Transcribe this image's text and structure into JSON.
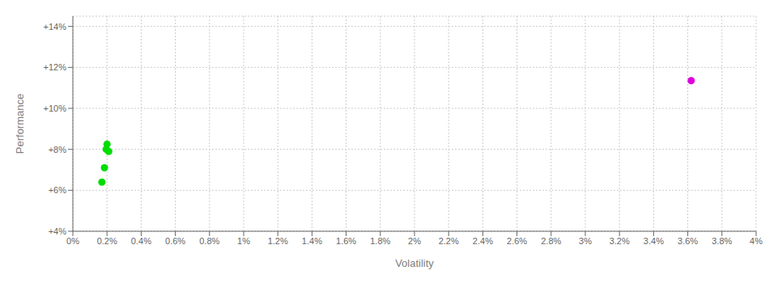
{
  "chart_data": {
    "type": "scatter",
    "xlabel": "Volatility",
    "ylabel": "Performance",
    "xlim": [
      0,
      0.04
    ],
    "ylim": [
      0.04,
      0.145
    ],
    "xticks": [
      {
        "value": 0,
        "label": "0%"
      },
      {
        "value": 0.002,
        "label": "0.2%"
      },
      {
        "value": 0.004,
        "label": "0.4%"
      },
      {
        "value": 0.006,
        "label": "0.6%"
      },
      {
        "value": 0.008,
        "label": "0.8%"
      },
      {
        "value": 0.01,
        "label": "1%"
      },
      {
        "value": 0.012,
        "label": "1.2%"
      },
      {
        "value": 0.014,
        "label": "1.4%"
      },
      {
        "value": 0.016,
        "label": "1.6%"
      },
      {
        "value": 0.018,
        "label": "1.8%"
      },
      {
        "value": 0.02,
        "label": "2%"
      },
      {
        "value": 0.022,
        "label": "2.2%"
      },
      {
        "value": 0.024,
        "label": "2.4%"
      },
      {
        "value": 0.026,
        "label": "2.6%"
      },
      {
        "value": 0.028,
        "label": "2.8%"
      },
      {
        "value": 0.03,
        "label": "3%"
      },
      {
        "value": 0.032,
        "label": "3.2%"
      },
      {
        "value": 0.034,
        "label": "3.4%"
      },
      {
        "value": 0.036,
        "label": "3.6%"
      },
      {
        "value": 0.038,
        "label": "3.8%"
      },
      {
        "value": 0.04,
        "label": "4%"
      }
    ],
    "yticks": [
      {
        "value": 0.04,
        "label": "+4%"
      },
      {
        "value": 0.06,
        "label": "+6%"
      },
      {
        "value": 0.08,
        "label": "+8%"
      },
      {
        "value": 0.1,
        "label": "+10%"
      },
      {
        "value": 0.12,
        "label": "+12%"
      },
      {
        "value": 0.14,
        "label": "+14%"
      }
    ],
    "grid": true,
    "series": [
      {
        "color": "#00dd00",
        "x": [
          0.00195,
          0.002,
          0.0021,
          0.00185,
          0.0017
        ],
        "values": [
          0.08,
          0.0825,
          0.079,
          0.071,
          0.064
        ]
      },
      {
        "color": "#dd00dd",
        "x": [
          0.0362
        ],
        "values": [
          0.1135
        ]
      }
    ]
  }
}
